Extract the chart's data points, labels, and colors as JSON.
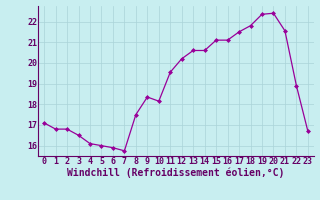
{
  "x": [
    0,
    1,
    2,
    3,
    4,
    5,
    6,
    7,
    8,
    9,
    10,
    11,
    12,
    13,
    14,
    15,
    16,
    17,
    18,
    19,
    20,
    21,
    22,
    23
  ],
  "y": [
    17.1,
    16.8,
    16.8,
    16.5,
    16.1,
    16.0,
    15.9,
    15.75,
    17.5,
    18.35,
    18.15,
    19.55,
    20.2,
    20.6,
    20.6,
    21.1,
    21.1,
    21.5,
    21.8,
    22.35,
    22.4,
    21.55,
    18.9,
    16.7
  ],
  "line_color": "#990099",
  "marker": "D",
  "marker_size": 2.0,
  "bg_color": "#c8eef0",
  "grid_color": "#aad4d8",
  "ylim": [
    15.5,
    22.75
  ],
  "xlim": [
    -0.5,
    23.5
  ],
  "yticks": [
    16,
    17,
    18,
    19,
    20,
    21,
    22
  ],
  "xticks": [
    0,
    1,
    2,
    3,
    4,
    5,
    6,
    7,
    8,
    9,
    10,
    11,
    12,
    13,
    14,
    15,
    16,
    17,
    18,
    19,
    20,
    21,
    22,
    23
  ],
  "xlabel": "Windchill (Refroidissement éolien,°C)",
  "xlabel_fontsize": 7.0,
  "tick_fontsize": 6.0,
  "label_color": "#660066",
  "spine_color": "#660066",
  "linewidth": 0.9
}
